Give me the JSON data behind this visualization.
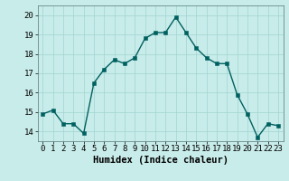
{
  "x": [
    0,
    1,
    2,
    3,
    4,
    5,
    6,
    7,
    8,
    9,
    10,
    11,
    12,
    13,
    14,
    15,
    16,
    17,
    18,
    19,
    20,
    21,
    22,
    23
  ],
  "y": [
    14.9,
    15.1,
    14.4,
    14.4,
    13.9,
    16.5,
    17.2,
    17.7,
    17.5,
    17.8,
    18.8,
    19.1,
    19.1,
    19.9,
    19.1,
    18.3,
    17.8,
    17.5,
    17.5,
    15.9,
    14.9,
    13.7,
    14.4,
    14.3
  ],
  "line_color": "#006060",
  "marker_color": "#006060",
  "bg_color": "#c8ecea",
  "grid_color": "#a0d4d0",
  "xlabel": "Humidex (Indice chaleur)",
  "xlim": [
    -0.5,
    23.5
  ],
  "ylim": [
    13.5,
    20.5
  ],
  "yticks": [
    14,
    15,
    16,
    17,
    18,
    19,
    20
  ],
  "xticks": [
    0,
    1,
    2,
    3,
    4,
    5,
    6,
    7,
    8,
    9,
    10,
    11,
    12,
    13,
    14,
    15,
    16,
    17,
    18,
    19,
    20,
    21,
    22,
    23
  ],
  "xlabel_fontsize": 7.5,
  "tick_fontsize": 6.5,
  "line_width": 1.0,
  "marker_size": 2.5
}
